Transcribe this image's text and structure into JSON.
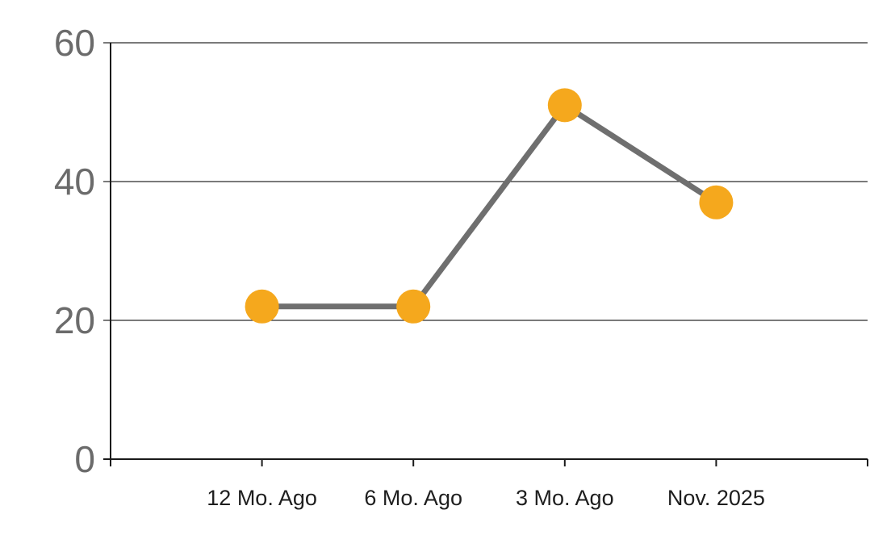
{
  "chart_data": {
    "type": "line",
    "title": "",
    "categories": [
      "12 Mo. Ago",
      "6 Mo. Ago",
      "3 Mo. Ago",
      "Nov. 2025"
    ],
    "values": [
      22,
      22,
      51,
      37
    ],
    "xlabel": "",
    "ylabel": "",
    "ylim": [
      0,
      60
    ],
    "yticks": [
      0,
      20,
      40,
      60
    ],
    "grid": "horizontal",
    "legend": "none",
    "colors": {
      "marker": "#F5A81D",
      "line": "#6F6F6F",
      "grid": "#2B2B2B",
      "axis": "#1A1A1A",
      "y_label": "#6B6B6B",
      "x_label": "#1E1E1E",
      "background": "#FFFFFF"
    }
  }
}
